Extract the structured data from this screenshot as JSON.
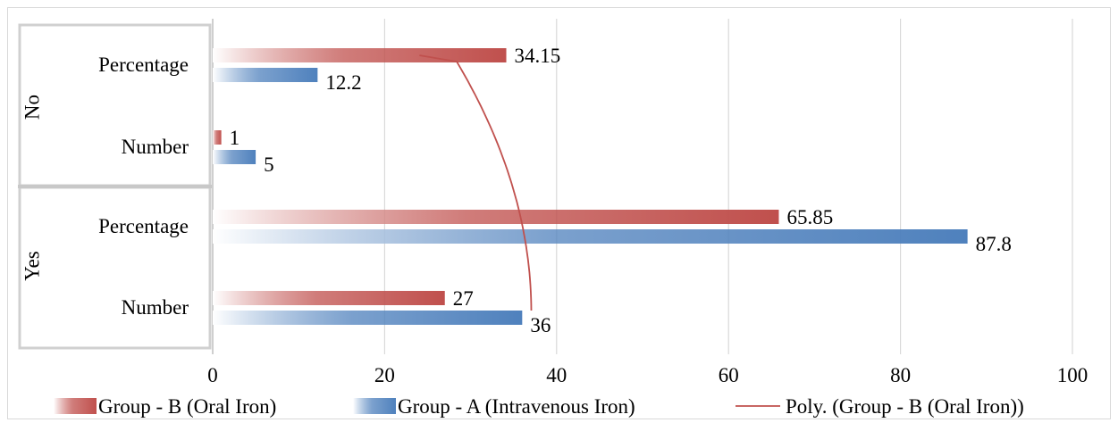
{
  "chart_data": {
    "type": "bar",
    "orientation": "horizontal",
    "groups": [
      {
        "label": "No",
        "categories": [
          "Percentage",
          "Number"
        ]
      },
      {
        "label": "Yes",
        "categories": [
          "Percentage",
          "Number"
        ]
      }
    ],
    "categories": [
      "No - Percentage",
      "No - Number",
      "Yes - Percentage",
      "Yes - Number"
    ],
    "series": [
      {
        "name": "Group - B (Oral Iron)",
        "color": "#c0504d",
        "values": [
          34.15,
          1,
          65.85,
          27
        ]
      },
      {
        "name": "Group - A (Intravenous Iron)",
        "color": "#4f81bd",
        "values": [
          12.2,
          5,
          87.8,
          36
        ]
      }
    ],
    "data_labels": {
      "Group - B (Oral Iron)": [
        "34.15",
        "1",
        "65.85",
        "27"
      ],
      "Group - A (Intravenous Iron)": [
        "12.2",
        "5",
        "87.8",
        "36"
      ]
    },
    "trendline": {
      "name": "Poly. (Group - B (Oral Iron))",
      "type": "polynomial",
      "series": "Group - B (Oral Iron)",
      "color": "#c0504d"
    },
    "xlim": [
      0,
      100
    ],
    "xticks": [
      "0",
      "20",
      "40",
      "60",
      "80",
      "100"
    ],
    "grid": true,
    "legend_position": "bottom",
    "title": "",
    "xlabel": "",
    "ylabel": ""
  }
}
